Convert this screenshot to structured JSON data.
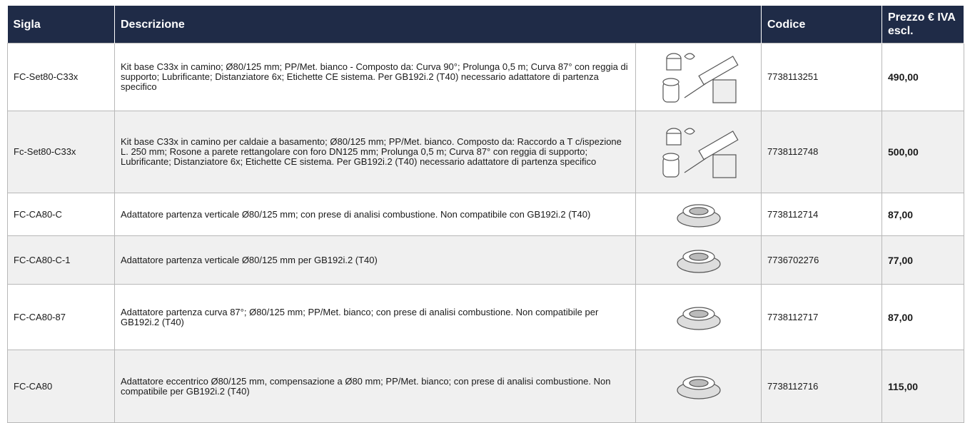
{
  "table": {
    "columns": [
      "Sigla",
      "Descrizione",
      "Codice",
      "Prezzo € IVA escl."
    ],
    "rows": [
      {
        "sigla": "FC-Set80-C33x",
        "descrizione": "Kit base C33x in camino; Ø80/125 mm; PP/Met. bianco - Composto da: Curva 90°; Prolunga 0,5 m; Curva 87° con reggia di supporto; Lubrificante; Distanziatore 6x; Etichette CE sistema. Per GB192i.2 (T40) necessario adattatore di partenza specifico",
        "codice": "7738113251",
        "prezzo": "490,00"
      },
      {
        "sigla": "Fc-Set80-C33x",
        "descrizione": "Kit base C33x in camino per caldaie a basamento; Ø80/125 mm; PP/Met. bianco. Composto da: Raccordo a T c/ispezione L. 250 mm; Rosone a parete rettangolare con foro DN125 mm; Prolunga 0,5 m; Curva 87° con reggia di supporto; Lubrificante; Distanziatore 6x; Etichette CE sistema. Per GB192i.2 (T40) necessario adattatore di partenza specifico",
        "codice": "7738112748",
        "prezzo": "500,00"
      },
      {
        "sigla": "FC-CA80-C",
        "descrizione": "Adattatore partenza verticale Ø80/125 mm; con prese di analisi combustione. Non compatibile con GB192i.2 (T40)",
        "codice": "7738112714",
        "prezzo": "87,00"
      },
      {
        "sigla": "FC-CA80-C-1",
        "descrizione": "Adattatore partenza verticale Ø80/125 mm per GB192i.2 (T40)",
        "codice": "7736702276",
        "prezzo": "77,00"
      },
      {
        "sigla": "FC-CA80-87",
        "descrizione": "Adattatore partenza curva 87°; Ø80/125 mm; PP/Met. bianco; con prese di analisi combustione. Non compatibile per GB192i.2 (T40)",
        "codice": "7738112717",
        "prezzo": "87,00"
      },
      {
        "sigla": "FC-CA80",
        "descrizione": "Adattatore eccentrico Ø80/125 mm, compensazione a Ø80 mm; PP/Met. bianco; con prese di analisi combustione. Non compatibile per GB192i.2 (T40)",
        "codice": "7738112716",
        "prezzo": "115,00"
      }
    ]
  }
}
